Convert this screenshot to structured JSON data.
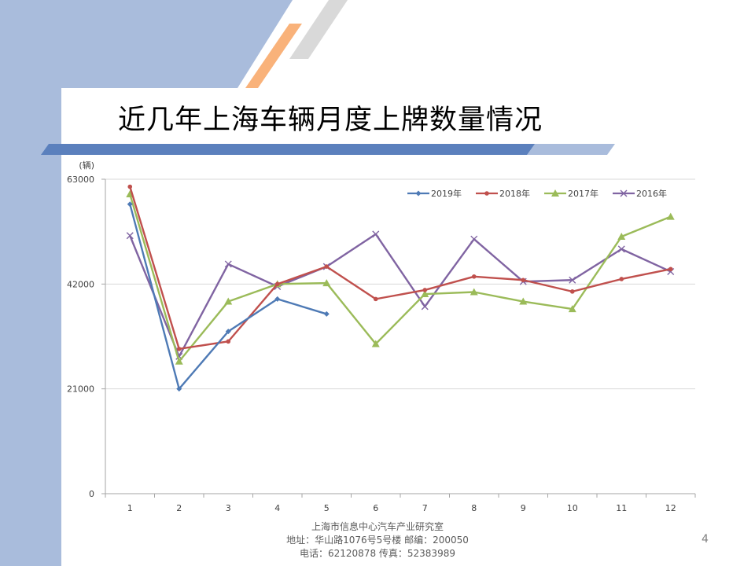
{
  "slide": {
    "title": "近几年上海车辆月度上牌数量情况",
    "page_number": "4",
    "footer": {
      "line1": "上海市信息中心汽车产业研究室",
      "line2": "地址：华山路1076号5号楼    邮编：200050",
      "line3": "电话：62120878  传真：52383989"
    }
  },
  "colors": {
    "left_band": "#a9bcdc",
    "accent_orange": "#f9b27a",
    "accent_grey": "#d9d9d9",
    "title_bar": "#5b80bd"
  },
  "chart_data": {
    "type": "line",
    "unit_label": "(辆)",
    "categories": [
      "1",
      "2",
      "3",
      "4",
      "5",
      "6",
      "7",
      "8",
      "9",
      "10",
      "11",
      "12"
    ],
    "ylim": [
      0,
      63000
    ],
    "yticks": [
      "0",
      "21000",
      "42000",
      "63000"
    ],
    "grid": true,
    "legend_position": "top-right",
    "series": [
      {
        "name": "2019年",
        "color": "#4e7ab5",
        "marker": "diamond",
        "values": [
          58000,
          21000,
          32500,
          39000,
          36000,
          null,
          null,
          null,
          null,
          null,
          null,
          null
        ]
      },
      {
        "name": "2018年",
        "color": "#c0504d",
        "marker": "dot",
        "values": [
          61500,
          29000,
          30500,
          42000,
          45500,
          39000,
          40800,
          43500,
          42800,
          40500,
          43000,
          45000
        ]
      },
      {
        "name": "2017年",
        "color": "#9bbb59",
        "marker": "triangle",
        "values": [
          60000,
          26500,
          38500,
          42000,
          42200,
          30000,
          40000,
          40400,
          38500,
          37000,
          51500,
          55500
        ]
      },
      {
        "name": "2016年",
        "color": "#8064a2",
        "marker": "x",
        "values": [
          51700,
          27500,
          46000,
          41500,
          45500,
          52000,
          37500,
          51000,
          42500,
          42800,
          49000,
          44500
        ]
      }
    ]
  }
}
